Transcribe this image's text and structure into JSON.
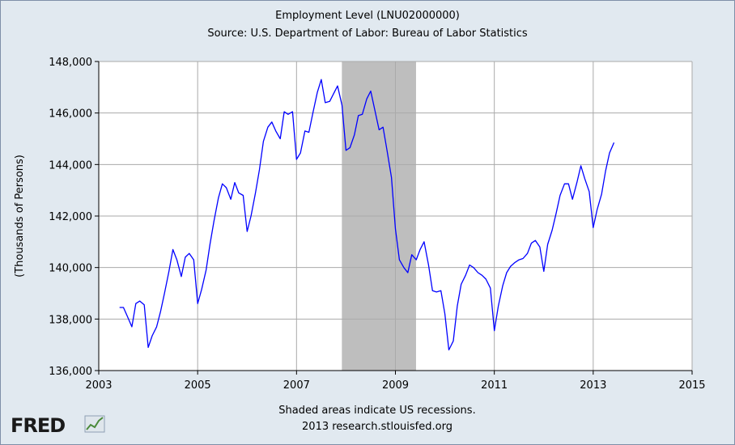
{
  "chart_data": {
    "type": "line",
    "title": "Employment Level (LNU02000000)",
    "subtitle": "Source: U.S. Department of Labor: Bureau of Labor Statistics",
    "ylabel": "(Thousands of Persons)",
    "xlabel": "",
    "xlim": [
      2003,
      2015
    ],
    "ylim": [
      136000,
      148000
    ],
    "x_ticks": [
      2003,
      2005,
      2007,
      2009,
      2011,
      2013,
      2015
    ],
    "x_tick_labels": [
      "2003",
      "2005",
      "2007",
      "2009",
      "2011",
      "2013",
      "2015"
    ],
    "y_ticks": [
      136000,
      138000,
      140000,
      142000,
      144000,
      146000,
      148000
    ],
    "y_tick_labels": [
      "136,000",
      "138,000",
      "140,000",
      "142,000",
      "144,000",
      "146,000",
      "148,000"
    ],
    "grid": true,
    "recessions": [
      {
        "start": 2007.917,
        "end": 2009.417
      }
    ],
    "series": [
      {
        "color": "#0000ff",
        "x": [
          2003.42,
          2003.5,
          2003.58,
          2003.67,
          2003.75,
          2003.83,
          2003.92,
          2004.0,
          2004.08,
          2004.17,
          2004.25,
          2004.33,
          2004.42,
          2004.5,
          2004.58,
          2004.67,
          2004.75,
          2004.83,
          2004.92,
          2005.0,
          2005.08,
          2005.17,
          2005.25,
          2005.33,
          2005.42,
          2005.5,
          2005.58,
          2005.67,
          2005.75,
          2005.83,
          2005.92,
          2006.0,
          2006.08,
          2006.17,
          2006.25,
          2006.33,
          2006.42,
          2006.5,
          2006.58,
          2006.67,
          2006.75,
          2006.83,
          2006.92,
          2007.0,
          2007.08,
          2007.17,
          2007.25,
          2007.33,
          2007.42,
          2007.5,
          2007.58,
          2007.67,
          2007.75,
          2007.83,
          2007.92,
          2008.0,
          2008.08,
          2008.17,
          2008.25,
          2008.33,
          2008.42,
          2008.5,
          2008.58,
          2008.67,
          2008.75,
          2008.83,
          2008.92,
          2009.0,
          2009.08,
          2009.17,
          2009.25,
          2009.33,
          2009.42,
          2009.5,
          2009.58,
          2009.67,
          2009.75,
          2009.83,
          2009.92,
          2010.0,
          2010.08,
          2010.17,
          2010.25,
          2010.33,
          2010.42,
          2010.5,
          2010.58,
          2010.67,
          2010.75,
          2010.83,
          2010.92,
          2011.0,
          2011.08,
          2011.17,
          2011.25,
          2011.33,
          2011.42,
          2011.5,
          2011.58,
          2011.67,
          2011.75,
          2011.83,
          2011.92,
          2012.0,
          2012.08,
          2012.17,
          2012.25,
          2012.33,
          2012.42,
          2012.5,
          2012.58,
          2012.67,
          2012.75,
          2012.83,
          2012.92,
          2013.0,
          2013.08,
          2013.17,
          2013.25,
          2013.33,
          2013.42
        ],
        "values": [
          138450,
          138450,
          138100,
          137700,
          138600,
          138700,
          138550,
          136900,
          137350,
          137700,
          138300,
          139000,
          139850,
          140700,
          140300,
          139650,
          140400,
          140550,
          140300,
          138600,
          139150,
          139900,
          140900,
          141800,
          142700,
          143250,
          143100,
          142650,
          143300,
          142900,
          142800,
          141400,
          142000,
          142900,
          143800,
          144900,
          145450,
          145650,
          145300,
          145000,
          146050,
          145950,
          146050,
          144200,
          144450,
          145300,
          145250,
          146000,
          146800,
          147300,
          146400,
          146450,
          146750,
          147050,
          146300,
          144550,
          144650,
          145150,
          145900,
          145950,
          146550,
          146850,
          146150,
          145350,
          145450,
          144550,
          143500,
          141500,
          140300,
          140000,
          139800,
          140500,
          140300,
          140700,
          141000,
          140100,
          139100,
          139050,
          139100,
          138200,
          136800,
          137150,
          138500,
          139350,
          139700,
          140100,
          140000,
          139800,
          139700,
          139550,
          139200,
          137550,
          138500,
          139300,
          139800,
          140050,
          140200,
          140300,
          140350,
          140550,
          140950,
          141050,
          140800,
          139850,
          140900,
          141450,
          142100,
          142800,
          143250,
          143250,
          142650,
          143300,
          143950,
          143450,
          142950,
          141550,
          142250,
          142850,
          143750,
          144450,
          144850
        ]
      }
    ]
  },
  "footer": {
    "note_line1": "Shaded areas indicate US recessions.",
    "note_line2": "2013 research.stlouisfed.org",
    "logo_text": "FRED"
  },
  "colors": {
    "background": "#e1e9f0",
    "plot_area": "#ffffff",
    "line": "#0000ff",
    "recession": "#bebebe",
    "grid": "#aaaaaa"
  }
}
